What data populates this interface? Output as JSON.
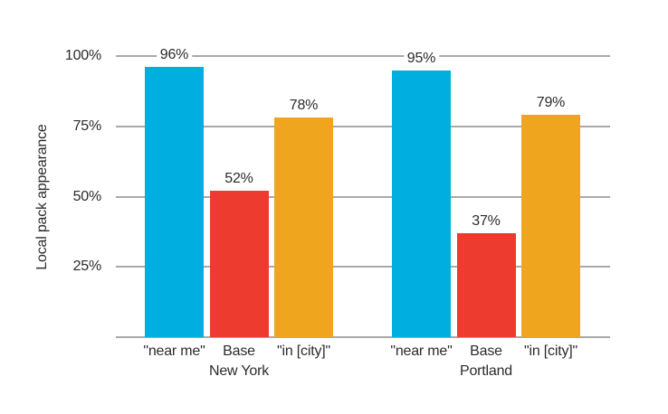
{
  "chart_data": {
    "type": "bar",
    "title": "",
    "ylabel": "Local pack appearance",
    "xlabel": "",
    "ylim": [
      0,
      100
    ],
    "grid": true,
    "legend_position": "none",
    "yticks": [
      {
        "label": "25%",
        "value": 25
      },
      {
        "label": "50%",
        "value": 50
      },
      {
        "label": "75%",
        "value": 75
      },
      {
        "label": "100%",
        "value": 100
      }
    ],
    "categories": [
      "\"near me\"",
      "Base",
      "\"in [city]\""
    ],
    "category_keys": [
      "near-me",
      "base",
      "in-city"
    ],
    "bar_colors": [
      "#00AEE0",
      "#EE3B30",
      "#F0A51E"
    ],
    "groups": [
      {
        "label": "New York",
        "key": "new-york",
        "values": [
          96,
          52,
          78
        ],
        "value_labels": [
          "96%",
          "52%",
          "78%"
        ]
      },
      {
        "label": "Portland",
        "key": "portland",
        "values": [
          95,
          37,
          79
        ],
        "value_labels": [
          "95%",
          "37%",
          "79%"
        ]
      }
    ],
    "colors": {
      "gridline": "#A9A9A9",
      "text": "#2B2B2B",
      "background": "#FFFFFF"
    }
  }
}
